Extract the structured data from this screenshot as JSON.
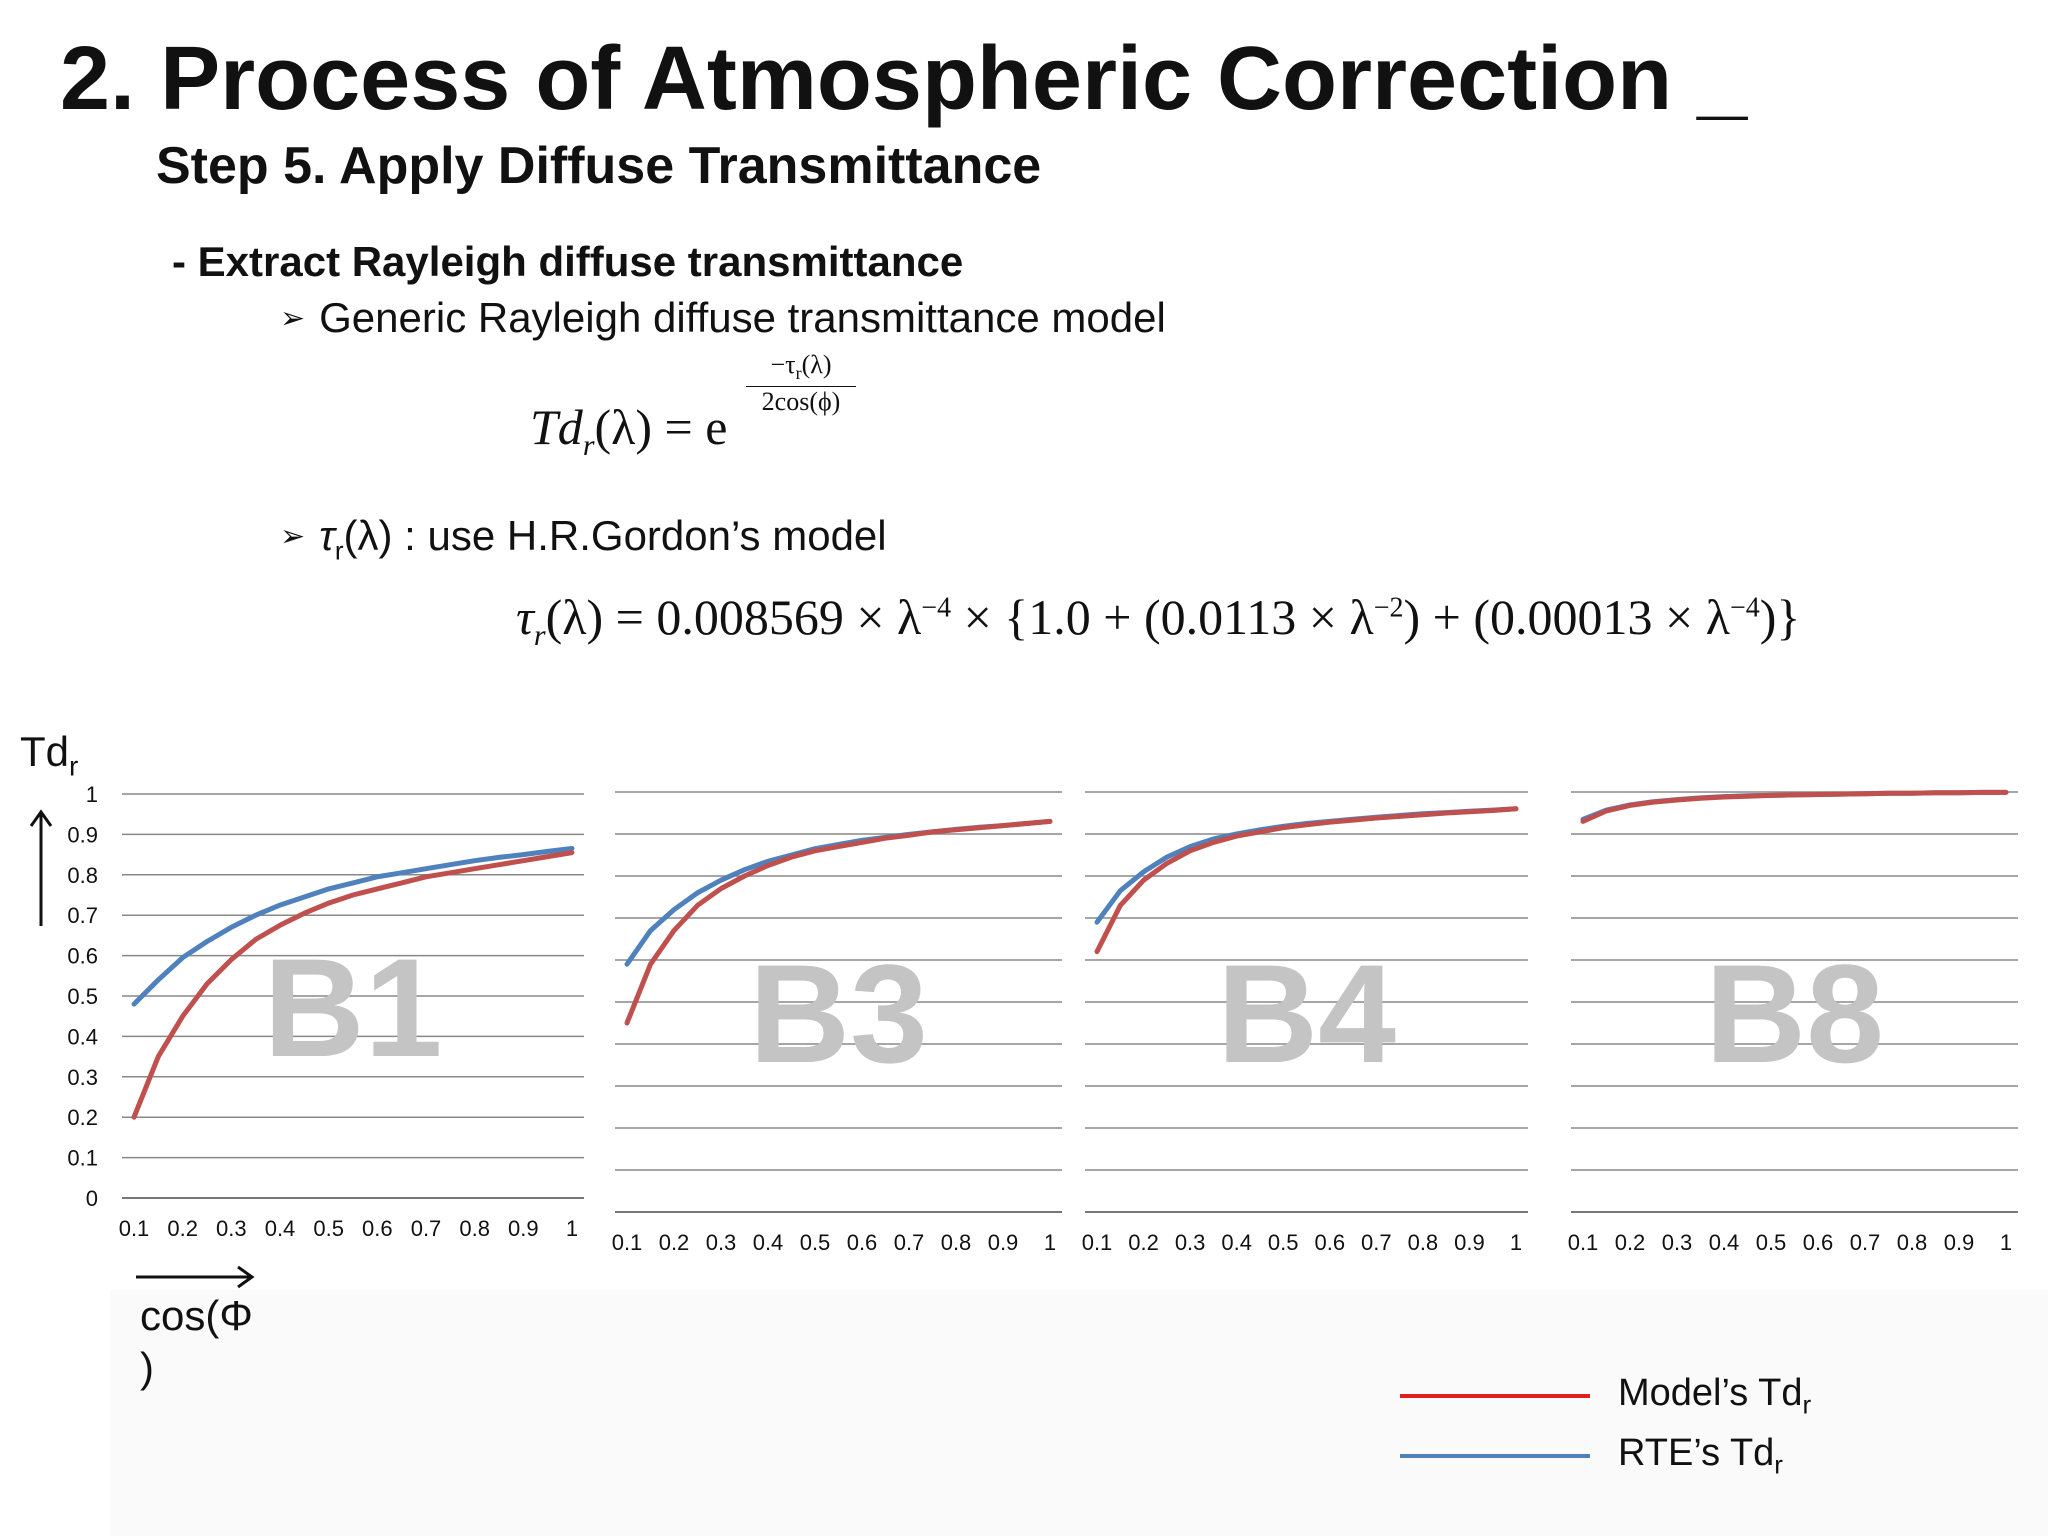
{
  "slide": {
    "title": "2. Process of Atmospheric Correction _",
    "subtitle": "Step 5. Apply Diffuse Transmittance",
    "section": "- Extract Rayleigh diffuse transmittance",
    "bullet1": "Generic Rayleigh diffuse transmittance model",
    "bullet2_tau": "τ",
    "bullet2_sub": "r",
    "bullet2_rest": "(λ) : use H.R.Gordon’s model"
  },
  "formula1": {
    "lhs_main": "Td",
    "lhs_sub": "r",
    "lhs_arg": "(λ) = e",
    "numerator": "−τ",
    "numerator_sub": "r",
    "numerator_arg": "(λ)",
    "denominator": "2cos(ϕ)"
  },
  "formula2": {
    "lhs_tau": "τ",
    "lhs_sub": "r",
    "rhs_a": "(λ) = 0.008569 × λ",
    "exp_a": "−4",
    "rhs_b": " × {1.0 + (0.0113 × λ",
    "exp_b": "−2",
    "rhs_c": ") + (0.00013 × λ",
    "exp_c": "−4",
    "rhs_d": ")}"
  },
  "axis_labels": {
    "y_main": "Td",
    "y_sub": "r",
    "x_line1": "cos(Φ",
    "x_line2": ")"
  },
  "legend": {
    "model_main": "Model’s Td",
    "model_sub": "r",
    "rte_main": "RTE’s Td",
    "rte_sub": "r"
  },
  "colors": {
    "model": "#c0504d",
    "rte": "#4f81bd",
    "legend_model": "#e02020",
    "grid": "#888888",
    "watermark": "#c4c4c4"
  },
  "chart_data": [
    {
      "type": "line",
      "panel_label": "B1",
      "x": [
        0.1,
        0.15,
        0.2,
        0.25,
        0.3,
        0.35,
        0.4,
        0.45,
        0.5,
        0.55,
        0.6,
        0.65,
        0.7,
        0.75,
        0.8,
        0.85,
        0.9,
        0.95,
        1.0
      ],
      "series": [
        {
          "name": "Model’s Td",
          "values": [
            0.2,
            0.35,
            0.45,
            0.53,
            0.59,
            0.64,
            0.675,
            0.705,
            0.73,
            0.75,
            0.765,
            0.78,
            0.795,
            0.805,
            0.815,
            0.825,
            0.835,
            0.845,
            0.855
          ]
        },
        {
          "name": "RTE’s Td",
          "values": [
            0.48,
            0.54,
            0.595,
            0.635,
            0.67,
            0.7,
            0.725,
            0.745,
            0.765,
            0.78,
            0.795,
            0.805,
            0.815,
            0.825,
            0.835,
            0.843,
            0.85,
            0.858,
            0.865
          ]
        }
      ],
      "xticks": [
        "0.1",
        "0.2",
        "0.3",
        "0.4",
        "0.5",
        "0.6",
        "0.7",
        "0.8",
        "0.9",
        "1"
      ],
      "yticks": [
        "0",
        "0.1",
        "0.2",
        "0.3",
        "0.4",
        "0.5",
        "0.6",
        "0.7",
        "0.8",
        "0.9",
        "1"
      ],
      "ylim": [
        0,
        1
      ],
      "grid": true
    },
    {
      "type": "line",
      "panel_label": "B3",
      "x": [
        0.1,
        0.15,
        0.2,
        0.25,
        0.3,
        0.35,
        0.4,
        0.45,
        0.5,
        0.55,
        0.6,
        0.65,
        0.7,
        0.75,
        0.8,
        0.85,
        0.9,
        0.95,
        1.0
      ],
      "series": [
        {
          "name": "Model’s Td",
          "values": [
            0.45,
            0.59,
            0.67,
            0.73,
            0.77,
            0.8,
            0.825,
            0.845,
            0.86,
            0.87,
            0.88,
            0.89,
            0.897,
            0.905,
            0.91,
            0.915,
            0.92,
            0.925,
            0.93
          ]
        },
        {
          "name": "RTE’s Td",
          "values": [
            0.59,
            0.67,
            0.72,
            0.76,
            0.79,
            0.815,
            0.835,
            0.85,
            0.865,
            0.875,
            0.885,
            0.892,
            0.899,
            0.905,
            0.911,
            0.916,
            0.92,
            0.925,
            0.93
          ]
        }
      ],
      "xticks": [
        "0.1",
        "0.2",
        "0.3",
        "0.4",
        "0.5",
        "0.6",
        "0.7",
        "0.8",
        "0.9",
        "1"
      ],
      "ylim": [
        0,
        1
      ],
      "grid": true
    },
    {
      "type": "line",
      "panel_label": "B4",
      "x": [
        0.1,
        0.15,
        0.2,
        0.25,
        0.3,
        0.35,
        0.4,
        0.45,
        0.5,
        0.55,
        0.6,
        0.65,
        0.7,
        0.75,
        0.8,
        0.85,
        0.9,
        0.95,
        1.0
      ],
      "series": [
        {
          "name": "Model’s Td",
          "values": [
            0.62,
            0.73,
            0.79,
            0.83,
            0.86,
            0.88,
            0.895,
            0.905,
            0.915,
            0.922,
            0.928,
            0.933,
            0.938,
            0.942,
            0.946,
            0.95,
            0.953,
            0.956,
            0.96
          ]
        },
        {
          "name": "RTE’s Td",
          "values": [
            0.69,
            0.765,
            0.81,
            0.845,
            0.87,
            0.888,
            0.9,
            0.91,
            0.918,
            0.925,
            0.93,
            0.935,
            0.94,
            0.944,
            0.948,
            0.951,
            0.954,
            0.957,
            0.96
          ]
        }
      ],
      "xticks": [
        "0.1",
        "0.2",
        "0.3",
        "0.4",
        "0.5",
        "0.6",
        "0.7",
        "0.8",
        "0.9",
        "1"
      ],
      "ylim": [
        0,
        1
      ],
      "grid": true
    },
    {
      "type": "line",
      "panel_label": "B8",
      "x": [
        0.1,
        0.15,
        0.2,
        0.25,
        0.3,
        0.35,
        0.4,
        0.45,
        0.5,
        0.55,
        0.6,
        0.65,
        0.7,
        0.75,
        0.8,
        0.85,
        0.9,
        0.95,
        1.0
      ],
      "series": [
        {
          "name": "Model’s Td",
          "values": [
            0.93,
            0.955,
            0.968,
            0.976,
            0.981,
            0.985,
            0.988,
            0.99,
            0.992,
            0.993,
            0.994,
            0.995,
            0.996,
            0.997,
            0.997,
            0.998,
            0.998,
            0.999,
            0.999
          ]
        },
        {
          "name": "RTE’s Td",
          "values": [
            0.935,
            0.957,
            0.969,
            0.977,
            0.982,
            0.986,
            0.989,
            0.991,
            0.992,
            0.993,
            0.994,
            0.995,
            0.996,
            0.997,
            0.997,
            0.998,
            0.998,
            0.999,
            0.999
          ]
        }
      ],
      "xticks": [
        "0.1",
        "0.2",
        "0.3",
        "0.4",
        "0.5",
        "0.6",
        "0.7",
        "0.8",
        "0.9",
        "1"
      ],
      "ylim": [
        0,
        1
      ],
      "grid": true
    }
  ]
}
